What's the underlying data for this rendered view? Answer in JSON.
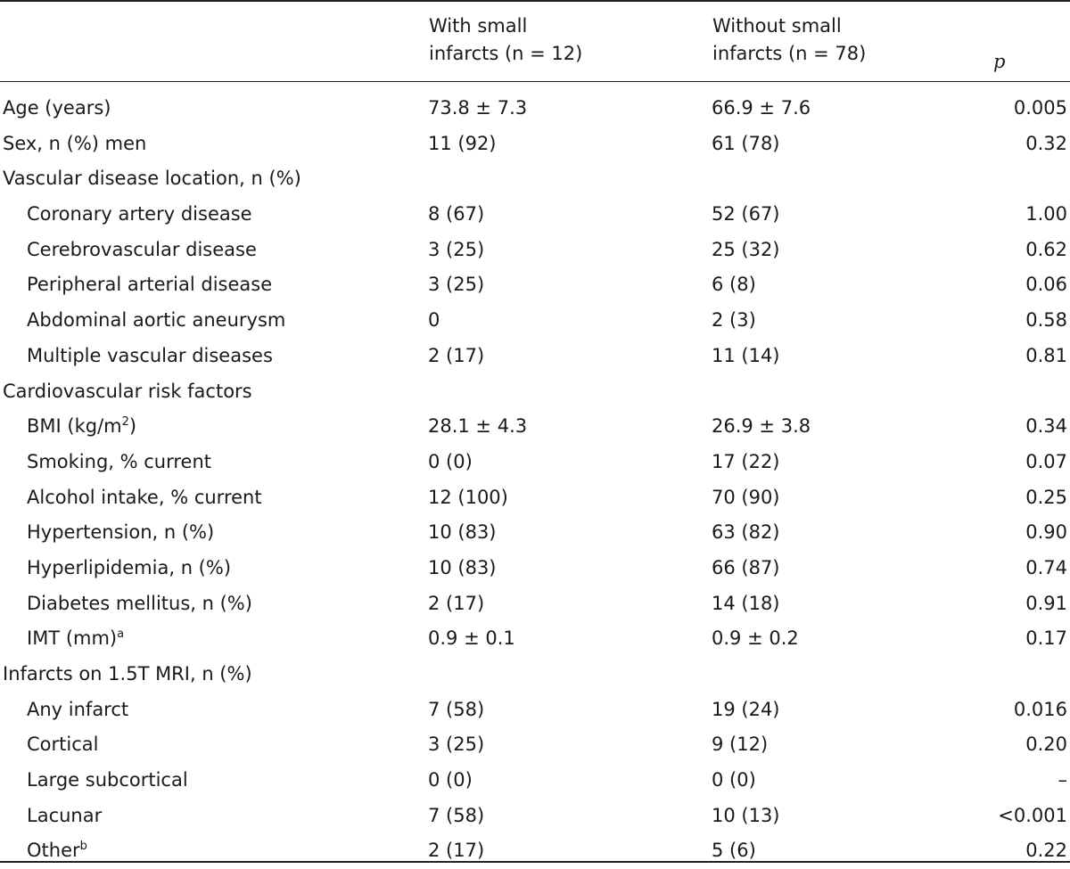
{
  "headers": {
    "col1_line1": "With small",
    "col1_line2": "infarcts (n = 12)",
    "col2_line1": "Without small",
    "col2_line2": "infarcts (n = 78)",
    "p": "p"
  },
  "rows": [
    {
      "label": "Age (years)",
      "sup": "",
      "v1": "73.8 ± 7.3",
      "v2": "66.9 ± 7.6",
      "p": "0.005",
      "sub": false
    },
    {
      "label": "Sex, n (%) men",
      "sup": "",
      "v1": "11 (92)",
      "v2": "61 (78)",
      "p": "0.32",
      "sub": false
    },
    {
      "label": "Vascular disease location, n (%)",
      "sup": "",
      "v1": "",
      "v2": "",
      "p": "",
      "sub": false
    },
    {
      "label": "Coronary artery disease",
      "sup": "",
      "v1": "8 (67)",
      "v2": "52 (67)",
      "p": "1.00",
      "sub": true
    },
    {
      "label": "Cerebrovascular disease",
      "sup": "",
      "v1": "3 (25)",
      "v2": "25 (32)",
      "p": "0.62",
      "sub": true
    },
    {
      "label": "Peripheral arterial disease",
      "sup": "",
      "v1": "3 (25)",
      "v2": "6 (8)",
      "p": "0.06",
      "sub": true
    },
    {
      "label": "Abdominal aortic aneurysm",
      "sup": "",
      "v1": "0",
      "v2": "2 (3)",
      "p": "0.58",
      "sub": true
    },
    {
      "label": "Multiple vascular diseases",
      "sup": "",
      "v1": "2 (17)",
      "v2": "11 (14)",
      "p": "0.81",
      "sub": true
    },
    {
      "label": "Cardiovascular risk factors",
      "sup": "",
      "v1": "",
      "v2": "",
      "p": "",
      "sub": false
    },
    {
      "label": "BMI (kg/m",
      "sup": "2",
      "suffix": ")",
      "v1": "28.1 ± 4.3",
      "v2": "26.9 ± 3.8",
      "p": "0.34",
      "sub": true
    },
    {
      "label": "Smoking, % current",
      "sup": "",
      "v1": "0 (0)",
      "v2": "17 (22)",
      "p": "0.07",
      "sub": true
    },
    {
      "label": "Alcohol intake, % current",
      "sup": "",
      "v1": "12 (100)",
      "v2": "70 (90)",
      "p": "0.25",
      "sub": true
    },
    {
      "label": "Hypertension, n (%)",
      "sup": "",
      "v1": "10 (83)",
      "v2": "63 (82)",
      "p": "0.90",
      "sub": true
    },
    {
      "label": "Hyperlipidemia, n (%)",
      "sup": "",
      "v1": "10 (83)",
      "v2": "66 (87)",
      "p": "0.74",
      "sub": true
    },
    {
      "label": "Diabetes mellitus, n (%)",
      "sup": "",
      "v1": "2 (17)",
      "v2": "14 (18)",
      "p": "0.91",
      "sub": true
    },
    {
      "label": "IMT (mm)",
      "sup": "a",
      "v1": "0.9 ± 0.1",
      "v2": "0.9 ± 0.2",
      "p": "0.17",
      "sub": true
    },
    {
      "label": "Infarcts on 1.5T MRI, n (%)",
      "sup": "",
      "v1": "",
      "v2": "",
      "p": "",
      "sub": false
    },
    {
      "label": "Any infarct",
      "sup": "",
      "v1": "7 (58)",
      "v2": "19 (24)",
      "p": "0.016",
      "sub": true
    },
    {
      "label": "Cortical",
      "sup": "",
      "v1": "3 (25)",
      "v2": "9 (12)",
      "p": "0.20",
      "sub": true
    },
    {
      "label": "Large subcortical",
      "sup": "",
      "v1": "0 (0)",
      "v2": "0 (0)",
      "p": "–",
      "sub": true
    },
    {
      "label": "Lacunar",
      "sup": "",
      "v1": "7 (58)",
      "v2": "10 (13)",
      "p": "<0.001",
      "sub": true
    },
    {
      "label": "Other",
      "sup": "b",
      "v1": "2 (17)",
      "v2": "5 (6)",
      "p": "0.22",
      "sub": true
    }
  ]
}
